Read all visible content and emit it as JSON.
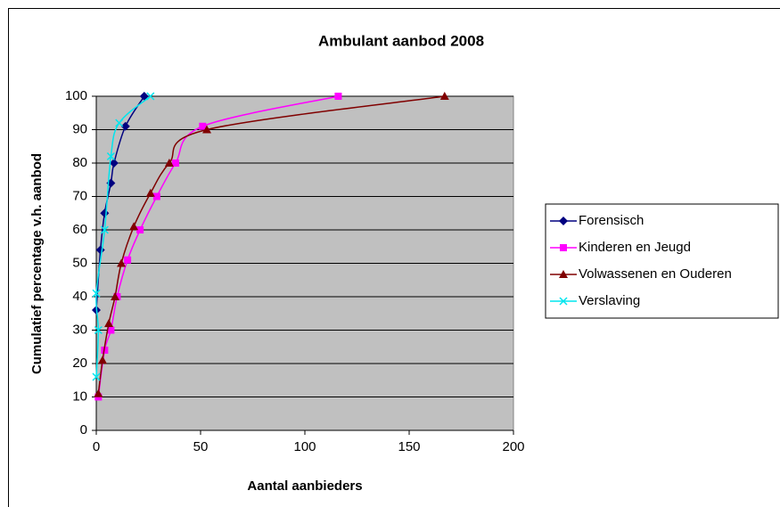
{
  "chart_data": {
    "type": "scatter",
    "title": "Ambulant aanbod 2008",
    "x_label": "Aantal aanbieders",
    "y_label": "Cumulatief percentage v.h. aanbod",
    "xlim": [
      0,
      200
    ],
    "xticks": [
      0,
      50,
      100,
      150,
      200
    ],
    "ylim": [
      0,
      100
    ],
    "yticks": [
      0,
      10,
      20,
      30,
      40,
      50,
      60,
      70,
      80,
      90,
      100
    ],
    "grid": true,
    "legend": "right",
    "background": "#c0c0c0",
    "series": [
      {
        "name": "Forensisch",
        "color": "#000080",
        "marker": "diamond",
        "x": [
          0,
          2,
          4,
          7,
          8.5,
          14,
          23
        ],
        "values": [
          36,
          54,
          65,
          74,
          80,
          91,
          100
        ]
      },
      {
        "name": "Kinderen en Jeugd",
        "color": "#ff00ff",
        "marker": "square",
        "x": [
          1,
          4,
          7,
          10,
          15,
          21,
          29,
          38,
          51,
          116
        ],
        "values": [
          10,
          24,
          30,
          40,
          51,
          60,
          70,
          80,
          91,
          100
        ]
      },
      {
        "name": "Volwassenen en Ouderen",
        "color": "#800000",
        "marker": "triangle",
        "x": [
          1,
          3,
          6,
          9,
          12,
          18,
          26,
          35,
          53,
          167
        ],
        "values": [
          11,
          21,
          32,
          40,
          50,
          61,
          71,
          80,
          90,
          100
        ]
      },
      {
        "name": "Verslaving",
        "color": "#00e5ee",
        "marker": "x",
        "x": [
          0,
          1,
          0,
          4,
          7,
          11,
          26
        ],
        "values": [
          16,
          30,
          41,
          60,
          82,
          92,
          100
        ]
      }
    ]
  }
}
